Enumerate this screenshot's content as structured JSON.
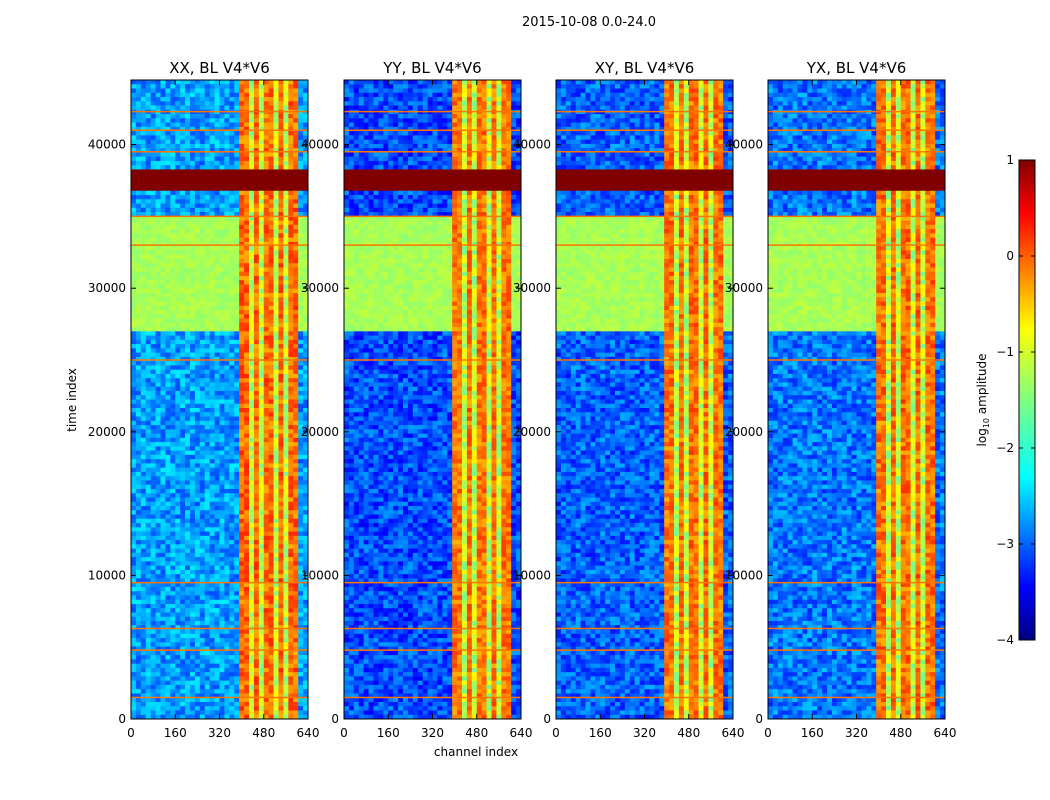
{
  "chart_data": {
    "type": "heatmap",
    "title": "2015-10-08 0.0-24.0",
    "xlabel": "channel index",
    "ylabel": "time index",
    "xlim": [
      0,
      640
    ],
    "ylim": [
      0,
      44500
    ],
    "xticks": [
      "0",
      "160",
      "320",
      "480",
      "640"
    ],
    "yticks": [
      "0",
      "10000",
      "20000",
      "30000",
      "40000"
    ],
    "panels": [
      {
        "title": "XX, BL V4*V6",
        "band_strength": 1.0,
        "bg_level": -2.6
      },
      {
        "title": "YY, BL V4*V6",
        "band_strength": 0.85,
        "bg_level": -3.0
      },
      {
        "title": "XY, BL V4*V6",
        "band_strength": 0.9,
        "bg_level": -2.9
      },
      {
        "title": "YX, BL V4*V6",
        "band_strength": 0.95,
        "bg_level": -2.8
      }
    ],
    "saturated_time_range": [
      36800,
      38300
    ],
    "flat_fill_ranges": [
      [
        27000,
        35000
      ]
    ],
    "colorbar": {
      "label": "log",
      "label_sub": "10",
      "label_rest": " amplitude",
      "min": -4,
      "max": 1,
      "ticks": [
        "1",
        "0",
        "−1",
        "−2",
        "−3",
        "−4"
      ],
      "colormap": "jet"
    }
  }
}
